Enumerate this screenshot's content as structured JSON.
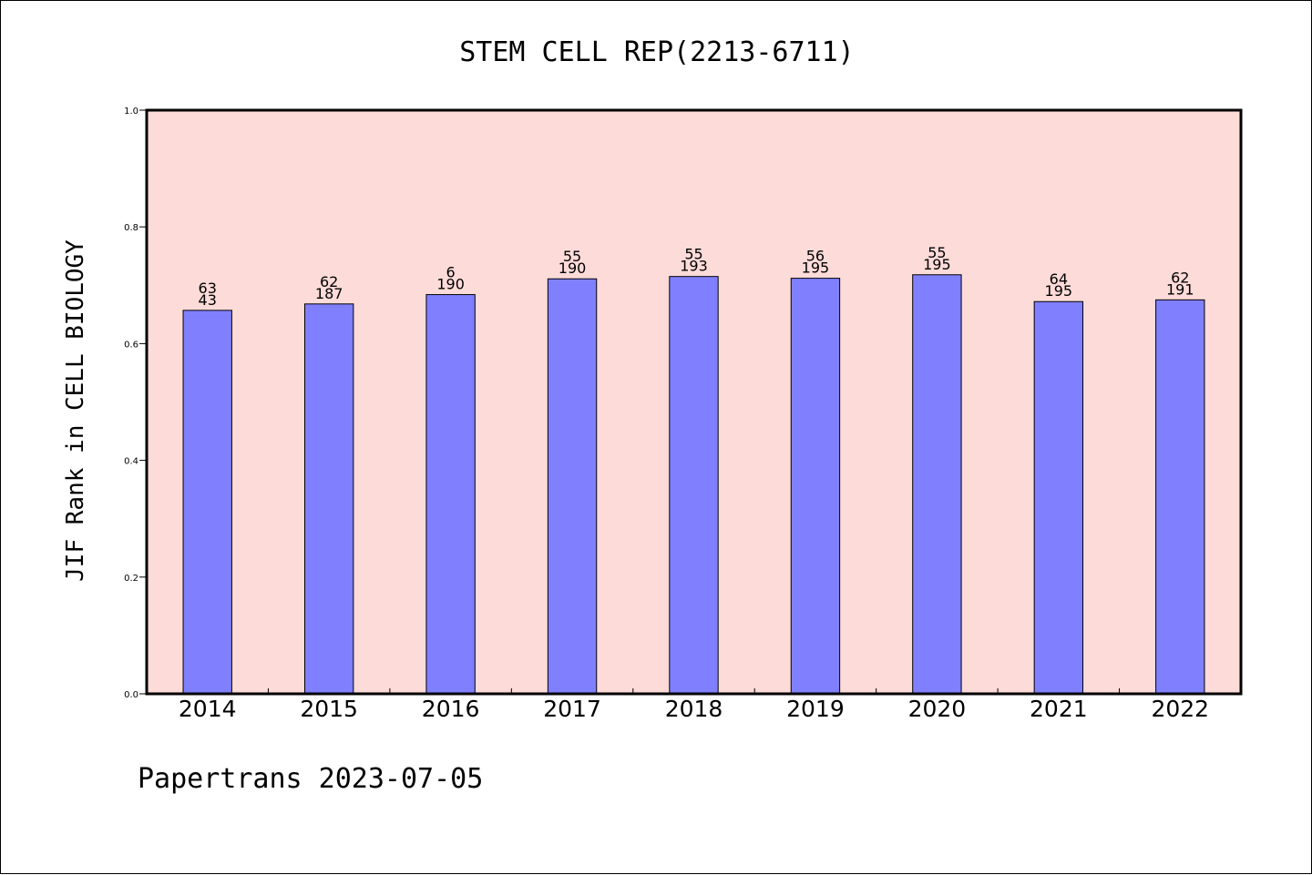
{
  "title": "STEM CELL REP(2213-6711)",
  "footer": "Papertrans 2023-07-05",
  "colors": {
    "plot_background": "#fddbd9",
    "bar_fill": "#8080ff",
    "bar_stroke": "#000000",
    "axis": "#000000"
  },
  "chart_data": {
    "type": "bar",
    "title": "STEM CELL REP(2213-6711)",
    "xlabel": "",
    "ylabel": "JIF Rank in CELL BIOLOGY",
    "ylim": [
      0,
      1.0
    ],
    "yticks": [
      "0.0",
      "0.2",
      "0.4",
      "0.6",
      "0.8",
      "1.0"
    ],
    "grid": false,
    "categories": [
      "2014",
      "2015",
      "2016",
      "2017",
      "2018",
      "2019",
      "2020",
      "2021",
      "2022"
    ],
    "values": [
      0.657,
      0.668,
      0.684,
      0.711,
      0.715,
      0.712,
      0.718,
      0.672,
      0.675
    ],
    "rank": [
      "63",
      "62",
      "6",
      "55",
      "55",
      "56",
      "55",
      "64",
      "62"
    ],
    "total": [
      "43",
      "187",
      "190",
      "190",
      "193",
      "195",
      "195",
      "195",
      "191"
    ]
  }
}
